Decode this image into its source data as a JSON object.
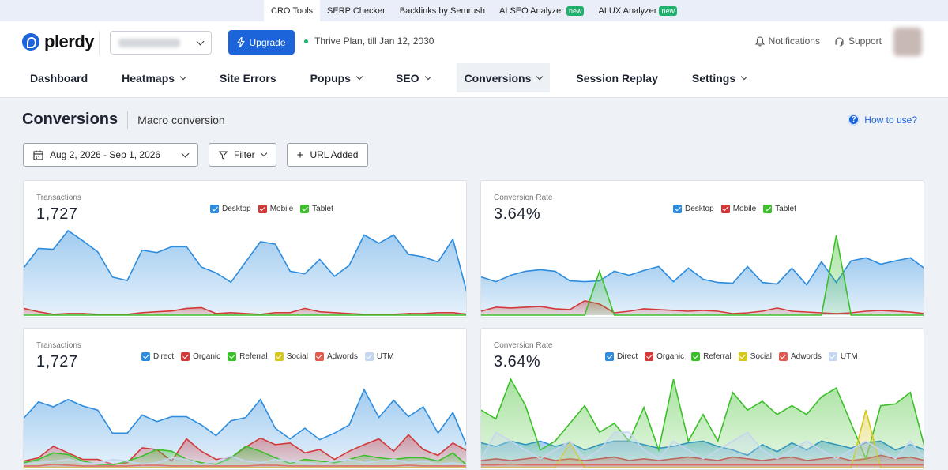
{
  "topbar": {
    "items": [
      {
        "label": "CRO Tools",
        "badge": ""
      },
      {
        "label": "SERP Checker",
        "badge": ""
      },
      {
        "label": "Backlinks by Semrush",
        "badge": ""
      },
      {
        "label": "AI SEO Analyzer",
        "badge": "new"
      },
      {
        "label": "AI UX Analyzer",
        "badge": "new"
      }
    ]
  },
  "header": {
    "logo": "plerdy",
    "upgrade_label": "Upgrade",
    "plan": "Thrive Plan, till Jan 12, 2030",
    "notifications": "Notifications",
    "support": "Support"
  },
  "nav": [
    "Dashboard",
    "Heatmaps",
    "Site Errors",
    "Popups",
    "SEO",
    "Conversions",
    "Session Replay",
    "Settings"
  ],
  "page": {
    "title": "Conversions",
    "subtitle": "Macro conversion",
    "how_to": "How to use?",
    "date_range": "Aug 2, 2026 - Sep 1, 2026",
    "filter": "Filter",
    "url_added": "URL Added"
  },
  "colors": {
    "desktop": "#2d8cdd",
    "mobile": "#d23a3a",
    "tablet": "#3cbf2a",
    "direct": "#2d8cdd",
    "organic": "#d23a3a",
    "referral": "#3cbf2a",
    "social": "#d6c71c",
    "adwords": "#e15a50",
    "utm": "#c5d6f0"
  },
  "cards": [
    {
      "label": "Transactions",
      "value": "1,727",
      "legend": [
        "Desktop",
        "Mobile",
        "Tablet"
      ]
    },
    {
      "label": "Conversion Rate",
      "value": "3.64%",
      "legend": [
        "Desktop",
        "Mobile",
        "Tablet"
      ]
    },
    {
      "label": "Transactions",
      "value": "1,727",
      "legend": [
        "Direct",
        "Organic",
        "Referral",
        "Social",
        "Adwords",
        "UTM"
      ]
    },
    {
      "label": "Conversion Rate",
      "value": "3.64%",
      "legend": [
        "Direct",
        "Organic",
        "Referral",
        "Social",
        "Adwords",
        "UTM"
      ]
    }
  ],
  "chart_data": [
    {
      "type": "area",
      "ylim": [
        0,
        100
      ],
      "series": [
        {
          "name": "Desktop",
          "values": [
            56,
            79,
            78,
            100,
            88,
            75,
            45,
            41,
            77,
            74,
            81,
            81,
            57,
            50,
            39,
            63,
            87,
            84,
            52,
            49,
            66,
            46,
            59,
            95,
            85,
            95,
            72,
            69,
            63,
            90,
            23
          ]
        },
        {
          "name": "Mobile",
          "values": [
            8,
            4,
            1,
            2,
            2,
            1,
            1,
            1,
            3,
            4,
            5,
            8,
            9,
            2,
            3,
            2,
            1,
            3,
            3,
            8,
            4,
            3,
            2,
            1,
            1,
            1,
            2,
            2,
            3,
            3,
            1
          ]
        },
        {
          "name": "Tablet",
          "values": [
            0,
            0,
            0,
            0,
            0,
            0,
            0,
            0,
            0,
            0,
            0,
            0,
            0,
            0,
            0,
            0,
            0,
            0,
            0,
            0,
            0,
            0,
            0,
            0,
            0,
            0,
            0,
            0,
            0,
            0,
            0
          ]
        }
      ]
    },
    {
      "type": "area",
      "ylim": [
        0,
        100
      ],
      "series": [
        {
          "name": "Desktop",
          "values": [
            48,
            42,
            50,
            55,
            57,
            55,
            43,
            42,
            43,
            55,
            50,
            56,
            61,
            42,
            59,
            45,
            41,
            40,
            61,
            41,
            39,
            59,
            38,
            67,
            41,
            68,
            72,
            64,
            68,
            72,
            58
          ]
        },
        {
          "name": "Mobile",
          "values": [
            5,
            10,
            9,
            10,
            11,
            8,
            7,
            18,
            14,
            3,
            5,
            8,
            7,
            6,
            5,
            6,
            5,
            2,
            3,
            5,
            9,
            5,
            4,
            3,
            2,
            3,
            5,
            6,
            5,
            4,
            2
          ]
        },
        {
          "name": "Tablet",
          "values": [
            0,
            0,
            0,
            0,
            0,
            0,
            0,
            0,
            55,
            0,
            0,
            0,
            0,
            0,
            0,
            0,
            0,
            0,
            0,
            0,
            0,
            0,
            0,
            0,
            100,
            0,
            0,
            0,
            0,
            0,
            0
          ]
        }
      ]
    },
    {
      "type": "area",
      "ylim": [
        0,
        100
      ],
      "series": [
        {
          "name": "Direct",
          "values": [
            60,
            80,
            74,
            83,
            75,
            70,
            42,
            42,
            64,
            56,
            62,
            62,
            52,
            39,
            57,
            61,
            83,
            48,
            35,
            48,
            34,
            42,
            52,
            95,
            61,
            82,
            62,
            74,
            42,
            67,
            24
          ]
        },
        {
          "name": "Organic",
          "values": [
            8,
            12,
            26,
            18,
            10,
            10,
            4,
            6,
            24,
            22,
            8,
            35,
            20,
            10,
            12,
            25,
            36,
            28,
            30,
            18,
            22,
            10,
            20,
            28,
            35,
            20,
            40,
            22,
            15,
            30,
            20
          ]
        },
        {
          "name": "Referral",
          "values": [
            6,
            10,
            18,
            16,
            8,
            4,
            3,
            8,
            14,
            22,
            20,
            10,
            6,
            4,
            12,
            26,
            20,
            12,
            5,
            10,
            8,
            6,
            10,
            15,
            12,
            10,
            12,
            12,
            8,
            18,
            2
          ]
        },
        {
          "name": "Social",
          "values": [
            0,
            0,
            0,
            0,
            0,
            0,
            0,
            0,
            0,
            0,
            0,
            0,
            0,
            0,
            0,
            0,
            0,
            0,
            0,
            0,
            0,
            0,
            0,
            0,
            0,
            0,
            0,
            0,
            0,
            0,
            0
          ]
        },
        {
          "name": "Adwords",
          "values": [
            2,
            2,
            4,
            3,
            2,
            2,
            2,
            2,
            3,
            3,
            2,
            2,
            2,
            2,
            2,
            2,
            3,
            3,
            2,
            2,
            2,
            2,
            2,
            2,
            2,
            2,
            3,
            2,
            2,
            2,
            2
          ]
        },
        {
          "name": "UTM",
          "values": [
            4,
            6,
            8,
            10,
            6,
            5,
            10,
            8,
            4,
            6,
            12,
            10,
            4,
            8,
            14,
            8,
            6,
            10,
            8,
            6,
            4,
            8,
            10,
            6,
            8,
            10,
            6,
            8,
            4,
            6,
            3
          ]
        }
      ]
    },
    {
      "type": "area",
      "ylim": [
        0,
        100
      ],
      "series": [
        {
          "name": "Direct",
          "values": [
            28,
            24,
            30,
            26,
            30,
            24,
            28,
            20,
            26,
            30,
            30,
            26,
            22,
            24,
            28,
            30,
            24,
            20,
            14,
            26,
            18,
            28,
            20,
            30,
            26,
            22,
            28,
            30,
            20,
            26,
            20
          ]
        },
        {
          "name": "Organic",
          "values": [
            8,
            10,
            8,
            10,
            12,
            8,
            10,
            8,
            10,
            12,
            8,
            10,
            8,
            10,
            12,
            10,
            8,
            12,
            10,
            8,
            10,
            12,
            8,
            10,
            12,
            8,
            10,
            14,
            10,
            12,
            8
          ]
        },
        {
          "name": "Referral",
          "values": [
            65,
            55,
            100,
            70,
            20,
            30,
            50,
            70,
            40,
            50,
            30,
            68,
            20,
            100,
            30,
            60,
            30,
            85,
            65,
            75,
            60,
            70,
            60,
            80,
            90,
            50,
            10,
            70,
            72,
            85,
            21
          ]
        },
        {
          "name": "Social",
          "values": [
            0,
            0,
            0,
            0,
            0,
            0,
            28,
            0,
            0,
            0,
            0,
            0,
            0,
            0,
            0,
            0,
            0,
            0,
            0,
            0,
            0,
            0,
            0,
            0,
            0,
            0,
            65,
            0,
            0,
            0,
            0
          ]
        },
        {
          "name": "Adwords",
          "values": [
            3,
            3,
            4,
            3,
            3,
            3,
            3,
            3,
            3,
            3,
            3,
            3,
            3,
            3,
            3,
            3,
            3,
            3,
            3,
            3,
            3,
            3,
            3,
            3,
            3,
            3,
            3,
            3,
            3,
            3,
            3
          ]
        },
        {
          "name": "UTM",
          "values": [
            10,
            40,
            30,
            20,
            10,
            20,
            30,
            10,
            20,
            40,
            40,
            20,
            10,
            30,
            20,
            10,
            20,
            30,
            40,
            20,
            10,
            20,
            30,
            20,
            10,
            20,
            30,
            20,
            10,
            30,
            10
          ]
        }
      ]
    }
  ]
}
